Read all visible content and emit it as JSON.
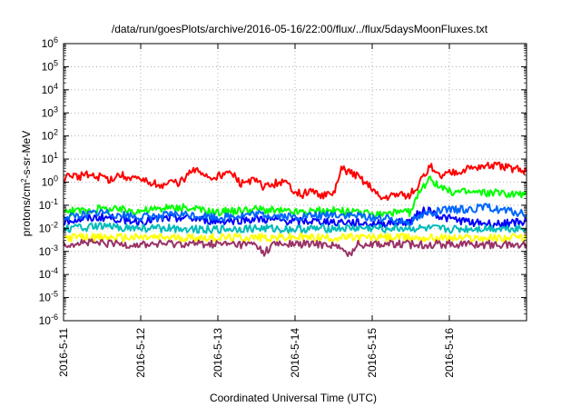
{
  "chart_data": {
    "type": "line",
    "title": "/data/run/goesPlots/archive/2016-05-16/22:00/flux/../flux/5daysMoonFluxes.txt",
    "xlabel": "Coordinated Universal Time (UTC)",
    "ylabel_base": "protons/cm",
    "ylabel_sup": "2",
    "ylabel_rest": "-s-sr-MeV",
    "y_log_scale": true,
    "ylim": [
      1e-06,
      1000000.0
    ],
    "grid": true,
    "x_range_days": [
      0,
      6.0
    ],
    "x_ticks": [
      {
        "day": 0,
        "label": "2016-5-11"
      },
      {
        "day": 1,
        "label": "2016-5-12"
      },
      {
        "day": 2,
        "label": "2016-5-13"
      },
      {
        "day": 3,
        "label": "2016-5-14"
      },
      {
        "day": 4,
        "label": "2016-5-15"
      },
      {
        "day": 5,
        "label": "2016-5-16"
      }
    ],
    "y_ticks": [
      {
        "exp": -6,
        "label": "-6"
      },
      {
        "exp": -5,
        "label": "-5"
      },
      {
        "exp": -4,
        "label": "-4"
      },
      {
        "exp": -3,
        "label": "-3"
      },
      {
        "exp": -2,
        "label": "-2"
      },
      {
        "exp": -1,
        "label": "-1"
      },
      {
        "exp": 0,
        "label": "0"
      },
      {
        "exp": 1,
        "label": "1"
      },
      {
        "exp": 2,
        "label": "2"
      },
      {
        "exp": 3,
        "label": "3"
      },
      {
        "exp": 4,
        "label": "4"
      },
      {
        "exp": 5,
        "label": "5"
      },
      {
        "exp": 6,
        "label": "6"
      }
    ],
    "series": [
      {
        "color": "#ff0000",
        "points": [
          [
            0,
            1.5
          ],
          [
            0.1,
            2
          ],
          [
            0.2,
            1.6
          ],
          [
            0.3,
            2.5
          ],
          [
            0.4,
            1.5
          ],
          [
            0.5,
            1.8
          ],
          [
            0.6,
            1.2
          ],
          [
            0.7,
            2
          ],
          [
            0.8,
            1.8
          ],
          [
            0.9,
            1.6
          ],
          [
            1.0,
            1.0
          ],
          [
            1.1,
            1.1
          ],
          [
            1.2,
            0.9
          ],
          [
            1.3,
            0.7
          ],
          [
            1.4,
            1.0
          ],
          [
            1.5,
            0.9
          ],
          [
            1.6,
            2.0
          ],
          [
            1.7,
            3.0
          ],
          [
            1.8,
            2.5
          ],
          [
            1.9,
            1.5
          ],
          [
            2.0,
            1.8
          ],
          [
            2.1,
            2.5
          ],
          [
            2.2,
            2.0
          ],
          [
            2.3,
            0.8
          ],
          [
            2.4,
            1.2
          ],
          [
            2.5,
            1.0
          ],
          [
            2.6,
            0.6
          ],
          [
            2.7,
            0.8
          ],
          [
            2.8,
            1.0
          ],
          [
            2.9,
            0.8
          ],
          [
            3.0,
            0.4
          ],
          [
            3.1,
            0.3
          ],
          [
            3.2,
            0.4
          ],
          [
            3.3,
            0.3
          ],
          [
            3.4,
            0.25
          ],
          [
            3.5,
            0.3
          ],
          [
            3.6,
            3.5
          ],
          [
            3.7,
            3.0
          ],
          [
            3.8,
            2.0
          ],
          [
            3.9,
            1.0
          ],
          [
            4.0,
            0.6
          ],
          [
            4.1,
            0.2
          ],
          [
            4.2,
            0.25
          ],
          [
            4.3,
            0.3
          ],
          [
            4.4,
            0.25
          ],
          [
            4.5,
            0.3
          ],
          [
            4.6,
            0.8
          ],
          [
            4.7,
            2.5
          ],
          [
            4.75,
            6.0
          ],
          [
            4.8,
            2.5
          ],
          [
            4.9,
            1.8
          ],
          [
            5.0,
            2.5
          ],
          [
            5.2,
            3.5
          ],
          [
            5.4,
            4.5
          ],
          [
            5.6,
            5.0
          ],
          [
            5.8,
            4.0
          ],
          [
            6.0,
            3.0
          ]
        ]
      },
      {
        "color": "#00ff00",
        "points": [
          [
            0,
            0.05
          ],
          [
            0.5,
            0.07
          ],
          [
            1.0,
            0.06
          ],
          [
            1.5,
            0.08
          ],
          [
            2.0,
            0.05
          ],
          [
            2.5,
            0.07
          ],
          [
            3.0,
            0.05
          ],
          [
            3.5,
            0.06
          ],
          [
            4.0,
            0.04
          ],
          [
            4.5,
            0.05
          ],
          [
            4.6,
            0.3
          ],
          [
            4.7,
            1.0
          ],
          [
            4.75,
            2.0
          ],
          [
            4.8,
            1.0
          ],
          [
            4.9,
            0.5
          ],
          [
            5.0,
            0.4
          ],
          [
            5.5,
            0.35
          ],
          [
            6.0,
            0.3
          ]
        ]
      },
      {
        "color": "#0000ff",
        "points": [
          [
            0,
            0.02
          ],
          [
            0.5,
            0.03
          ],
          [
            1.0,
            0.02
          ],
          [
            1.5,
            0.03
          ],
          [
            2.0,
            0.02
          ],
          [
            2.5,
            0.025
          ],
          [
            3.0,
            0.02
          ],
          [
            3.5,
            0.02
          ],
          [
            4.0,
            0.015
          ],
          [
            4.5,
            0.02
          ],
          [
            4.6,
            0.05
          ],
          [
            4.75,
            0.06
          ],
          [
            4.9,
            0.03
          ],
          [
            5.2,
            0.02
          ],
          [
            5.6,
            0.015
          ],
          [
            6.0,
            0.02
          ]
        ]
      },
      {
        "color": "#00bbbb",
        "points": [
          [
            0,
            0.01
          ],
          [
            0.5,
            0.012
          ],
          [
            1.0,
            0.01
          ],
          [
            1.5,
            0.01
          ],
          [
            2.0,
            0.009
          ],
          [
            2.5,
            0.01
          ],
          [
            3.0,
            0.009
          ],
          [
            3.5,
            0.01
          ],
          [
            4.0,
            0.01
          ],
          [
            4.5,
            0.01
          ],
          [
            5.0,
            0.009
          ],
          [
            5.5,
            0.01
          ],
          [
            6.0,
            0.01
          ]
        ]
      },
      {
        "color": "#ffff00",
        "points": [
          [
            0,
            0.004
          ],
          [
            1,
            0.004
          ],
          [
            2,
            0.004
          ],
          [
            3,
            0.004
          ],
          [
            4,
            0.004
          ],
          [
            5,
            0.0038
          ],
          [
            6,
            0.0038
          ]
        ]
      },
      {
        "color": "#993366",
        "points": [
          [
            0,
            0.002
          ],
          [
            0.2,
            0.0025
          ],
          [
            0.5,
            0.0022
          ],
          [
            1.0,
            0.002
          ],
          [
            1.5,
            0.0022
          ],
          [
            2.0,
            0.0021
          ],
          [
            2.5,
            0.002
          ],
          [
            2.6,
            0.0008
          ],
          [
            2.7,
            0.002
          ],
          [
            3.0,
            0.0021
          ],
          [
            3.5,
            0.002
          ],
          [
            3.7,
            0.0007
          ],
          [
            3.8,
            0.002
          ],
          [
            4.0,
            0.0022
          ],
          [
            4.5,
            0.002
          ],
          [
            5.0,
            0.0021
          ],
          [
            5.5,
            0.002
          ],
          [
            6.0,
            0.0019
          ]
        ]
      },
      {
        "color": "#0066ff",
        "points": [
          [
            0,
            0.03
          ],
          [
            0.5,
            0.05
          ],
          [
            1.0,
            0.03
          ],
          [
            1.5,
            0.04
          ],
          [
            2.0,
            0.03
          ],
          [
            2.5,
            0.04
          ],
          [
            3.0,
            0.03
          ],
          [
            3.5,
            0.04
          ],
          [
            4.0,
            0.03
          ],
          [
            4.5,
            0.02
          ],
          [
            4.6,
            0.03
          ],
          [
            4.75,
            0.05
          ],
          [
            5.0,
            0.06
          ],
          [
            5.5,
            0.08
          ],
          [
            6.0,
            0.04
          ]
        ]
      }
    ]
  }
}
